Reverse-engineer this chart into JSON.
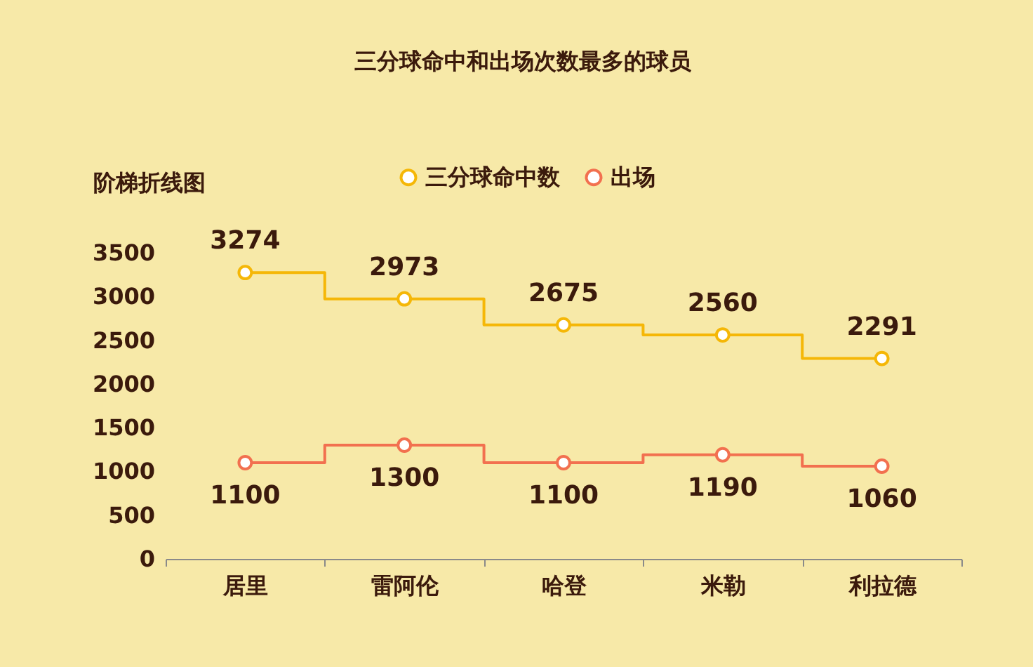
{
  "chart_data": {
    "type": "step",
    "title": "三分球命中和出场次数最多的球员",
    "ylabel": "阶梯折线图",
    "categories": [
      "居里",
      "雷阿伦",
      "哈登",
      "米勒",
      "利拉德"
    ],
    "series": [
      {
        "name": "三分球命中数",
        "color": "#f5b707",
        "values": [
          3274,
          2973,
          2675,
          2560,
          2291
        ]
      },
      {
        "name": "出场",
        "color": "#f2704f",
        "values": [
          1100,
          1300,
          1100,
          1190,
          1060
        ]
      }
    ],
    "ylim": [
      0,
      3500
    ],
    "yticks": [
      0,
      500,
      1000,
      1500,
      2000,
      2500,
      3000,
      3500
    ],
    "grid": false,
    "legend": "top",
    "marker": "circle",
    "data_labels": true
  }
}
